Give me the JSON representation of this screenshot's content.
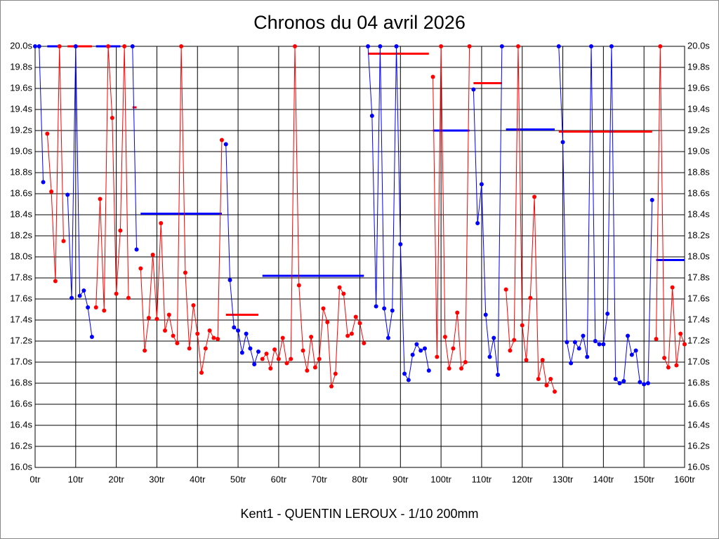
{
  "chart_data": {
    "type": "line",
    "title": "Chronos du 04 avril 2026",
    "x_label": "Kent1 - QUENTIN LEROUX - 1/10 200mm",
    "xlim": [
      0,
      160
    ],
    "ylim": [
      16,
      20
    ],
    "xticks": [
      {
        "value": 0,
        "label": "0tr"
      },
      {
        "value": 10,
        "label": "10tr"
      },
      {
        "value": 20,
        "label": "20tr"
      },
      {
        "value": 30,
        "label": "30tr"
      },
      {
        "value": 40,
        "label": "40tr"
      },
      {
        "value": 50,
        "label": "50tr"
      },
      {
        "value": 60,
        "label": "60tr"
      },
      {
        "value": 70,
        "label": "70tr"
      },
      {
        "value": 80,
        "label": "80tr"
      },
      {
        "value": 90,
        "label": "90tr"
      },
      {
        "value": 100,
        "label": "100tr"
      },
      {
        "value": 110,
        "label": "110tr"
      },
      {
        "value": 120,
        "label": "120tr"
      },
      {
        "value": 130,
        "label": "130tr"
      },
      {
        "value": 140,
        "label": "140tr"
      },
      {
        "value": 150,
        "label": "150tr"
      },
      {
        "value": 160,
        "label": "160tr"
      }
    ],
    "yticks": [
      {
        "value": 16,
        "label": "16.0s"
      },
      {
        "value": 16.2,
        "label": "16.2s"
      },
      {
        "value": 16.4,
        "label": "16.4s"
      },
      {
        "value": 16.6,
        "label": "16.6s"
      },
      {
        "value": 16.8,
        "label": "16.8s"
      },
      {
        "value": 17,
        "label": "17.0s"
      },
      {
        "value": 17.2,
        "label": "17.2s"
      },
      {
        "value": 17.4,
        "label": "17.4s"
      },
      {
        "value": 17.6,
        "label": "17.6s"
      },
      {
        "value": 17.8,
        "label": "17.8s"
      },
      {
        "value": 18,
        "label": "18.0s"
      },
      {
        "value": 18.2,
        "label": "18.2s"
      },
      {
        "value": 18.4,
        "label": "18.4s"
      },
      {
        "value": 18.6,
        "label": "18.6s"
      },
      {
        "value": 18.8,
        "label": "18.8s"
      },
      {
        "value": 19,
        "label": "19.0s"
      },
      {
        "value": 19.2,
        "label": "19.2s"
      },
      {
        "value": 19.4,
        "label": "19.4s"
      },
      {
        "value": 19.6,
        "label": "19.6s"
      },
      {
        "value": 19.8,
        "label": "19.8s"
      },
      {
        "value": 20,
        "label": "20.0s"
      }
    ],
    "grid": true,
    "series": [
      {
        "color": "#0000ff",
        "x": [
          0,
          1,
          2,
          null,
          8,
          9,
          10,
          11,
          12,
          13,
          14,
          null,
          24,
          25,
          null,
          47,
          48,
          49,
          50,
          51,
          52,
          53,
          54,
          55,
          null,
          82,
          83,
          84,
          85,
          86,
          87,
          88,
          89,
          90,
          91,
          92,
          93,
          94,
          95,
          96,
          97,
          null,
          108,
          109,
          110,
          111,
          112,
          113,
          114,
          115,
          null,
          129,
          130,
          131,
          132,
          133,
          134,
          135,
          136,
          137,
          138,
          139,
          140,
          141,
          142,
          143,
          144,
          145,
          146,
          147,
          148,
          149,
          150,
          151,
          152
        ],
        "values": [
          20,
          20,
          18.71,
          null,
          18.59,
          17.61,
          20,
          17.63,
          17.68,
          17.52,
          17.24,
          null,
          20,
          18.07,
          null,
          19.07,
          17.78,
          17.33,
          17.3,
          17.09,
          17.27,
          17.13,
          16.98,
          17.1,
          null,
          20,
          19.34,
          17.53,
          20,
          17.51,
          17.23,
          17.49,
          20,
          18.12,
          16.89,
          16.83,
          17.07,
          17.17,
          17.11,
          17.13,
          16.92,
          null,
          19.59,
          18.32,
          18.69,
          17.45,
          17.05,
          17.23,
          16.88,
          20,
          null,
          20,
          19.09,
          17.19,
          16.99,
          17.19,
          17.13,
          17.25,
          17.05,
          20,
          17.2,
          17.17,
          17.17,
          17.46,
          20,
          16.84,
          16.8,
          16.82,
          17.25,
          17.07,
          17.11,
          16.81,
          16.79,
          16.8,
          18.54
        ]
      },
      {
        "color": "#ff0000",
        "x": [
          3,
          4,
          5,
          6,
          7,
          null,
          15,
          16,
          17,
          18,
          19,
          20,
          21,
          22,
          23,
          null,
          26,
          27,
          28,
          29,
          30,
          31,
          32,
          33,
          34,
          35,
          36,
          37,
          38,
          39,
          40,
          41,
          42,
          43,
          44,
          45,
          46,
          null,
          56,
          57,
          58,
          59,
          60,
          61,
          62,
          63,
          64,
          65,
          66,
          67,
          68,
          69,
          70,
          71,
          72,
          73,
          74,
          75,
          76,
          77,
          78,
          79,
          80,
          81,
          null,
          98,
          99,
          100,
          101,
          102,
          103,
          104,
          105,
          106,
          107,
          null,
          116,
          117,
          118,
          119,
          120,
          121,
          122,
          123,
          124,
          125,
          126,
          127,
          128,
          null,
          153,
          154,
          155,
          156,
          157,
          158,
          159,
          160
        ],
        "values": [
          19.17,
          18.62,
          17.77,
          20,
          18.15,
          null,
          17.52,
          18.55,
          17.49,
          20,
          19.32,
          17.65,
          18.25,
          20,
          17.61,
          null,
          17.89,
          17.11,
          17.42,
          18.02,
          17.41,
          18.32,
          17.3,
          17.45,
          17.25,
          17.18,
          20,
          17.85,
          17.13,
          17.54,
          17.27,
          16.9,
          17.13,
          17.3,
          17.23,
          17.22,
          19.11,
          null,
          17.03,
          17.08,
          16.94,
          17.12,
          17.03,
          17.23,
          16.99,
          17.03,
          20,
          17.73,
          17.11,
          16.92,
          17.24,
          16.95,
          17.03,
          17.51,
          17.38,
          16.77,
          16.89,
          17.71,
          17.65,
          17.25,
          17.27,
          17.43,
          17.37,
          17.18,
          null,
          19.71,
          17.05,
          20,
          17.24,
          16.94,
          17.13,
          17.47,
          16.94,
          17.0,
          20,
          null,
          17.69,
          17.11,
          17.21,
          20,
          17.35,
          17.02,
          17.61,
          18.57,
          16.84,
          17.02,
          16.78,
          16.84,
          16.72,
          null,
          17.22,
          20,
          17.04,
          16.95,
          17.71,
          16.97,
          17.27,
          17.17
        ]
      }
    ],
    "averages": [
      {
        "color": "#0000ff",
        "x": [
          3,
          6
        ],
        "value": 20
      },
      {
        "color": "#ff0000",
        "x": [
          8,
          14
        ],
        "value": 20
      },
      {
        "color": "#0000ff",
        "x": [
          15,
          21
        ],
        "value": 20
      },
      {
        "color": "#ff0000",
        "x": [
          24,
          25
        ],
        "value": 19.42
      },
      {
        "color": "#0000ff",
        "x": [
          26,
          46
        ],
        "value": 18.41
      },
      {
        "color": "#ff0000",
        "x": [
          47,
          55
        ],
        "value": 17.45
      },
      {
        "color": "#0000ff",
        "x": [
          56,
          81
        ],
        "value": 17.82
      },
      {
        "color": "#ff0000",
        "x": [
          82,
          97
        ],
        "value": 19.93
      },
      {
        "color": "#0000ff",
        "x": [
          98,
          107
        ],
        "value": 19.2
      },
      {
        "color": "#ff0000",
        "x": [
          108,
          115
        ],
        "value": 19.65
      },
      {
        "color": "#0000ff",
        "x": [
          116,
          128
        ],
        "value": 19.21
      },
      {
        "color": "#ff0000",
        "x": [
          129,
          152
        ],
        "value": 19.19
      },
      {
        "color": "#0000ff",
        "x": [
          153,
          160
        ],
        "value": 17.97
      }
    ]
  }
}
